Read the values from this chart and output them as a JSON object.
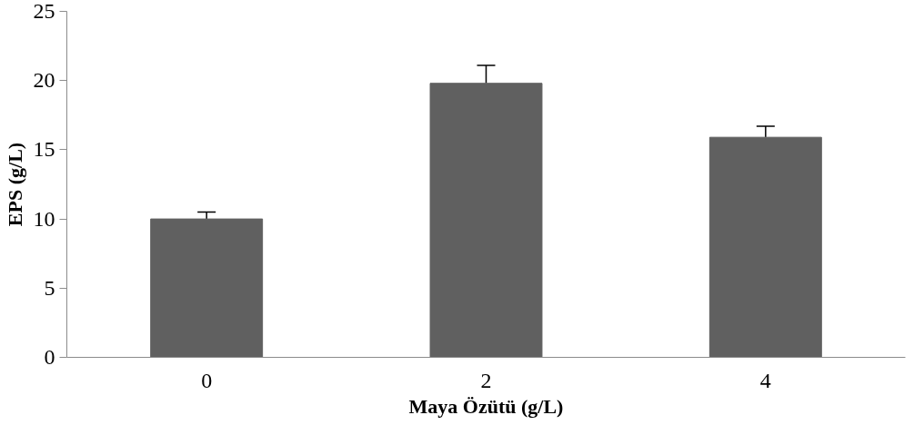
{
  "chart_data": {
    "type": "bar",
    "xlabel": "Maya Özütü (g/L)",
    "ylabel": "EPS (g/L)",
    "categories": [
      "0",
      "2",
      "4"
    ],
    "values": [
      10.0,
      19.8,
      15.9
    ],
    "errors": [
      0.5,
      1.3,
      0.8
    ],
    "color": "#606060",
    "ylim": [
      0,
      25
    ],
    "yticks": [
      0,
      5,
      10,
      15,
      20,
      25
    ],
    "grid": false
  }
}
